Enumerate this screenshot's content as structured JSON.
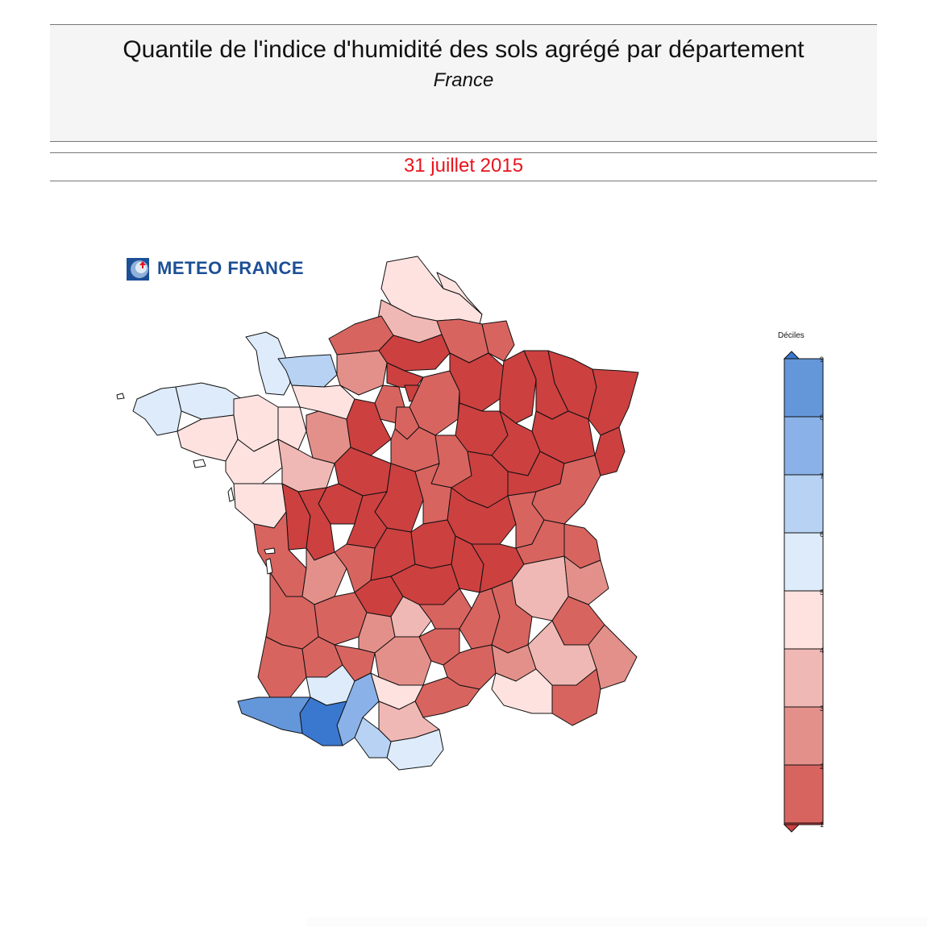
{
  "header": {
    "title": "Quantile de l'indice d'humidité des sols agrégé par département",
    "subtitle": "France",
    "date": "31 juillet 2015"
  },
  "logo": {
    "text": "METEO FRANCE",
    "icon": "meteo-france-logo-icon"
  },
  "legend": {
    "title": "Déciles",
    "ticks": [
      "1",
      "2",
      "3",
      "4",
      "5",
      "6",
      "7",
      "8",
      "9"
    ],
    "colors": {
      "d1": "#cc4040",
      "d2": "#d86460",
      "d3": "#e4908a",
      "d4": "#f0b8b4",
      "d5": "#fde2e0",
      "d6": "#ddebfa",
      "d7": "#b7d2f2",
      "d8": "#8ab2e8",
      "d9": "#6496da",
      "d10": "#3a78d0"
    }
  },
  "colors": {
    "date_red": "#e8141c",
    "logo_blue": "#1c4f96"
  }
}
